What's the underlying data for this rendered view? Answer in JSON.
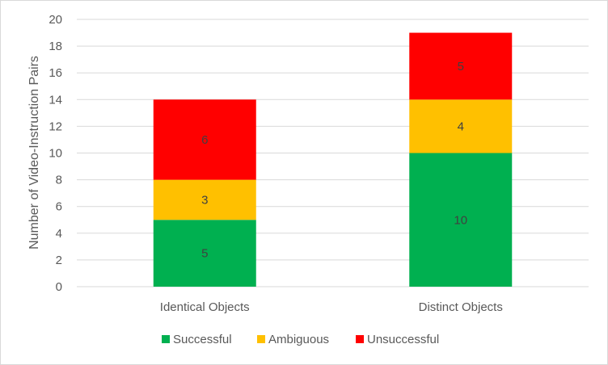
{
  "chart_data": {
    "type": "bar",
    "stacked": true,
    "categories": [
      "Identical Objects",
      "Distinct Objects"
    ],
    "series": [
      {
        "name": "Successful",
        "values": [
          5,
          10
        ],
        "color": "#00b050"
      },
      {
        "name": "Ambiguous",
        "values": [
          3,
          4
        ],
        "color": "#ffc000"
      },
      {
        "name": "Unsuccessful",
        "values": [
          6,
          5
        ],
        "color": "#ff0000"
      }
    ],
    "title": "",
    "xlabel": "",
    "ylabel": "Number of Video-Instruction Pairs",
    "ylim": [
      0,
      20
    ],
    "yticks": [
      0,
      2,
      4,
      6,
      8,
      10,
      12,
      14,
      16,
      18,
      20
    ],
    "grid": true,
    "legend_position": "bottom",
    "data_labels": true
  }
}
